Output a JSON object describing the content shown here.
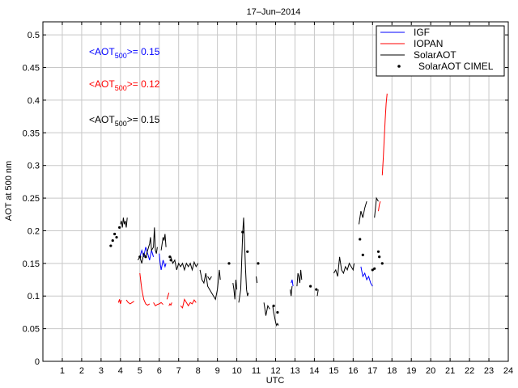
{
  "chart_data": {
    "type": "line",
    "title": "17–Jun–2014",
    "xlabel": "UTC",
    "ylabel": "AOT at 500 nm",
    "xlim": [
      0,
      24
    ],
    "ylim": [
      0,
      0.52
    ],
    "xticks": [
      "1",
      "2",
      "3",
      "4",
      "5",
      "6",
      "7",
      "8",
      "9",
      "10",
      "11",
      "12",
      "13",
      "14",
      "15",
      "16",
      "17",
      "18",
      "19",
      "20",
      "21",
      "22",
      "23",
      "24"
    ],
    "yticks": [
      "0",
      "0.05",
      "0.1",
      "0.15",
      "0.2",
      "0.25",
      "0.3",
      "0.35",
      "0.4",
      "0.45",
      "0.5"
    ],
    "grid": true,
    "legend_position": "top-right",
    "annotations": [
      {
        "pre": "<AOT",
        "sub": "500",
        "post": ">= 0.15",
        "color": "#0000ff"
      },
      {
        "pre": "<AOT",
        "sub": "500",
        "post": ">= 0.12",
        "color": "#ff0000"
      },
      {
        "pre": "<AOT",
        "sub": "500",
        "post": ">= 0.15",
        "color": "#000000"
      }
    ],
    "series": [
      {
        "name": "IGF",
        "style": "line",
        "color": "#0000ff",
        "segments": [
          [
            [
              5.0,
              0.16
            ],
            [
              5.1,
              0.17
            ],
            [
              5.2,
              0.16
            ],
            [
              5.3,
              0.175
            ],
            [
              5.4,
              0.165
            ],
            [
              5.5,
              0.155
            ],
            [
              5.6,
              0.17
            ],
            [
              5.7,
              0.16
            ]
          ],
          [
            [
              6.0,
              0.165
            ],
            [
              6.05,
              0.15
            ],
            [
              6.1,
              0.14
            ],
            [
              6.2,
              0.155
            ],
            [
              6.3,
              0.145
            ],
            [
              6.35,
              0.15
            ]
          ],
          [
            [
              12.8,
              0.12
            ],
            [
              12.85,
              0.125
            ],
            [
              12.9,
              0.115
            ]
          ],
          [
            [
              16.4,
              0.145
            ],
            [
              16.5,
              0.13
            ],
            [
              16.6,
              0.135
            ],
            [
              16.7,
              0.125
            ],
            [
              16.8,
              0.13
            ],
            [
              16.9,
              0.12
            ],
            [
              17.0,
              0.115
            ]
          ]
        ]
      },
      {
        "name": "IOPAN",
        "style": "line",
        "color": "#ff0000",
        "segments": [
          [
            [
              3.9,
              0.09
            ],
            [
              3.95,
              0.095
            ],
            [
              4.0,
              0.088
            ],
            [
              4.05,
              0.094
            ]
          ],
          [
            [
              4.3,
              0.094
            ],
            [
              4.4,
              0.09
            ],
            [
              4.5,
              0.088
            ],
            [
              4.6,
              0.09
            ],
            [
              4.7,
              0.092
            ]
          ],
          [
            [
              5.0,
              0.135
            ],
            [
              5.1,
              0.11
            ],
            [
              5.2,
              0.095
            ],
            [
              5.3,
              0.088
            ],
            [
              5.4,
              0.086
            ],
            [
              5.5,
              0.088
            ]
          ],
          [
            [
              5.7,
              0.09
            ],
            [
              5.8,
              0.085
            ],
            [
              5.9,
              0.087
            ],
            [
              6.0,
              0.088
            ],
            [
              6.1,
              0.09
            ],
            [
              6.2,
              0.087
            ]
          ],
          [
            [
              6.4,
              0.095
            ],
            [
              6.5,
              0.105
            ]
          ],
          [
            [
              6.5,
              0.085
            ],
            [
              6.55,
              0.088
            ],
            [
              6.6,
              0.086
            ],
            [
              6.65,
              0.09
            ]
          ],
          [
            [
              7.1,
              0.085
            ],
            [
              7.2,
              0.082
            ],
            [
              7.3,
              0.095
            ],
            [
              7.4,
              0.09
            ],
            [
              7.5,
              0.085
            ],
            [
              7.6,
              0.09
            ],
            [
              7.7,
              0.088
            ],
            [
              7.8,
              0.094
            ],
            [
              7.9,
              0.09
            ]
          ],
          [
            [
              17.3,
              0.23
            ],
            [
              17.35,
              0.24
            ],
            [
              17.4,
              0.245
            ]
          ],
          [
            [
              17.5,
              0.285
            ],
            [
              17.55,
              0.31
            ],
            [
              17.6,
              0.34
            ],
            [
              17.65,
              0.37
            ],
            [
              17.7,
              0.395
            ],
            [
              17.75,
              0.41
            ]
          ]
        ]
      },
      {
        "name": "SolarAOT",
        "style": "line",
        "color": "#000000",
        "segments": [
          [
            [
              4.0,
              0.21
            ],
            [
              4.05,
              0.215
            ],
            [
              4.1,
              0.205
            ],
            [
              4.15,
              0.22
            ],
            [
              4.2,
              0.21
            ],
            [
              4.25,
              0.215
            ],
            [
              4.3,
              0.205
            ],
            [
              4.35,
              0.22
            ]
          ],
          [
            [
              4.9,
              0.155
            ],
            [
              5.0,
              0.16
            ],
            [
              5.1,
              0.15
            ],
            [
              5.2,
              0.165
            ],
            [
              5.3,
              0.16
            ],
            [
              5.4,
              0.17
            ],
            [
              5.5,
              0.18
            ],
            [
              5.55,
              0.19
            ],
            [
              5.6,
              0.17
            ],
            [
              5.7,
              0.175
            ],
            [
              5.75,
              0.205
            ],
            [
              5.8,
              0.17
            ],
            [
              5.85,
              0.165
            ],
            [
              5.9,
              0.175
            ]
          ],
          [
            [
              6.1,
              0.17
            ],
            [
              6.15,
              0.18
            ],
            [
              6.2,
              0.19
            ],
            [
              6.25,
              0.185
            ],
            [
              6.3,
              0.195
            ],
            [
              6.35,
              0.175
            ]
          ],
          [
            [
              6.6,
              0.16
            ],
            [
              6.7,
              0.15
            ],
            [
              6.8,
              0.155
            ],
            [
              6.9,
              0.14
            ],
            [
              7.0,
              0.15
            ],
            [
              7.1,
              0.145
            ],
            [
              7.2,
              0.15
            ],
            [
              7.3,
              0.14
            ],
            [
              7.4,
              0.15
            ],
            [
              7.5,
              0.145
            ],
            [
              7.6,
              0.15
            ],
            [
              7.7,
              0.14
            ],
            [
              7.8,
              0.152
            ],
            [
              7.9,
              0.145
            ],
            [
              8.0,
              0.15
            ]
          ],
          [
            [
              8.1,
              0.14
            ],
            [
              8.2,
              0.125
            ],
            [
              8.3,
              0.12
            ],
            [
              8.4,
              0.135
            ],
            [
              8.5,
              0.115
            ],
            [
              8.6,
              0.11
            ],
            [
              8.7,
              0.105
            ],
            [
              8.8,
              0.1
            ],
            [
              8.9,
              0.095
            ],
            [
              9.0,
              0.11
            ],
            [
              9.1,
              0.14
            ],
            [
              9.15,
              0.125
            ]
          ],
          [
            [
              8.5,
              0.13
            ],
            [
              8.6,
              0.125
            ],
            [
              8.7,
              0.13
            ]
          ],
          [
            [
              9.8,
              0.12
            ],
            [
              9.85,
              0.11
            ],
            [
              9.9,
              0.095
            ],
            [
              9.95,
              0.125
            ],
            [
              10.0,
              0.11
            ]
          ],
          [
            [
              10.1,
              0.09
            ],
            [
              10.2,
              0.11
            ],
            [
              10.3,
              0.195
            ],
            [
              10.35,
              0.22
            ],
            [
              10.4,
              0.18
            ],
            [
              10.45,
              0.14
            ],
            [
              10.5,
              0.11
            ],
            [
              10.55,
              0.1
            ],
            [
              10.6,
              0.105
            ]
          ],
          [
            [
              11.0,
              0.13
            ],
            [
              11.05,
              0.12
            ]
          ],
          [
            [
              11.4,
              0.09
            ],
            [
              11.5,
              0.07
            ],
            [
              11.6,
              0.085
            ],
            [
              11.7,
              0.08
            ]
          ],
          [
            [
              11.85,
              0.085
            ],
            [
              11.9,
              0.075
            ],
            [
              12.0,
              0.06
            ],
            [
              12.05,
              0.055
            ],
            [
              12.1,
              0.058
            ],
            [
              12.15,
              0.055
            ]
          ],
          [
            [
              12.75,
              0.11
            ],
            [
              12.8,
              0.1
            ],
            [
              12.85,
              0.115
            ]
          ],
          [
            [
              13.1,
              0.115
            ],
            [
              13.15,
              0.135
            ],
            [
              13.2,
              0.13
            ],
            [
              13.25,
              0.12
            ],
            [
              13.3,
              0.14
            ],
            [
              13.35,
              0.125
            ]
          ],
          [
            [
              14.15,
              0.1
            ],
            [
              14.2,
              0.11
            ]
          ],
          [
            [
              15.0,
              0.135
            ],
            [
              15.1,
              0.14
            ],
            [
              15.2,
              0.13
            ],
            [
              15.25,
              0.145
            ],
            [
              15.3,
              0.16
            ],
            [
              15.4,
              0.14
            ],
            [
              15.5,
              0.135
            ],
            [
              15.6,
              0.145
            ],
            [
              15.7,
              0.14
            ],
            [
              15.8,
              0.15
            ],
            [
              15.9,
              0.145
            ],
            [
              16.0,
              0.14
            ],
            [
              16.05,
              0.15
            ]
          ],
          [
            [
              16.3,
              0.21
            ],
            [
              16.4,
              0.23
            ],
            [
              16.5,
              0.22
            ],
            [
              16.6,
              0.235
            ],
            [
              16.7,
              0.245
            ]
          ],
          [
            [
              17.1,
              0.22
            ],
            [
              17.2,
              0.25
            ],
            [
              17.3,
              0.245
            ]
          ]
        ]
      },
      {
        "name": "SolarAOT CIMEL",
        "style": "marker",
        "color": "#000000",
        "points": [
          [
            3.5,
            0.177
          ],
          [
            3.6,
            0.185
          ],
          [
            3.7,
            0.195
          ],
          [
            3.8,
            0.19
          ],
          [
            3.95,
            0.205
          ],
          [
            5.0,
            0.16
          ],
          [
            5.3,
            0.16
          ],
          [
            6.55,
            0.16
          ],
          [
            6.6,
            0.155
          ],
          [
            9.6,
            0.15
          ],
          [
            10.3,
            0.198
          ],
          [
            10.55,
            0.168
          ],
          [
            11.1,
            0.15
          ],
          [
            11.9,
            0.085
          ],
          [
            12.1,
            0.075
          ],
          [
            13.8,
            0.115
          ],
          [
            14.1,
            0.11
          ],
          [
            16.35,
            0.187
          ],
          [
            16.5,
            0.163
          ],
          [
            17.0,
            0.14
          ],
          [
            17.1,
            0.142
          ],
          [
            17.3,
            0.168
          ],
          [
            17.35,
            0.16
          ],
          [
            17.5,
            0.15
          ]
        ]
      }
    ]
  }
}
